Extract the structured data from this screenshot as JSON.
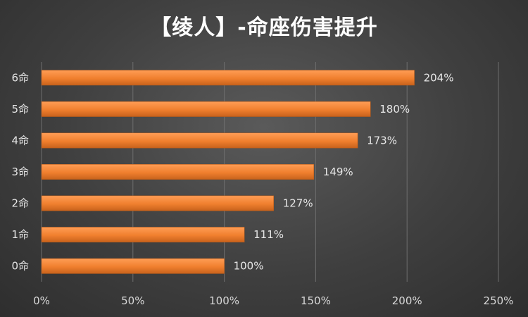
{
  "chart_data": {
    "type": "bar",
    "orientation": "horizontal",
    "title": "【绫人】-命座伤害提升",
    "categories": [
      "0命",
      "1命",
      "2命",
      "3命",
      "4命",
      "5命",
      "6命"
    ],
    "values": [
      100,
      111,
      127,
      149,
      173,
      180,
      204
    ],
    "value_labels": [
      "100%",
      "111%",
      "127%",
      "149%",
      "173%",
      "180%",
      "204%"
    ],
    "xlim": [
      0,
      250
    ],
    "x_ticks": [
      "0%",
      "50%",
      "100%",
      "150%",
      "200%",
      "250%"
    ],
    "xlabel": "",
    "ylabel": "",
    "grid": true,
    "bar_color": "#f07f2e",
    "background": "#3c3c3c"
  }
}
